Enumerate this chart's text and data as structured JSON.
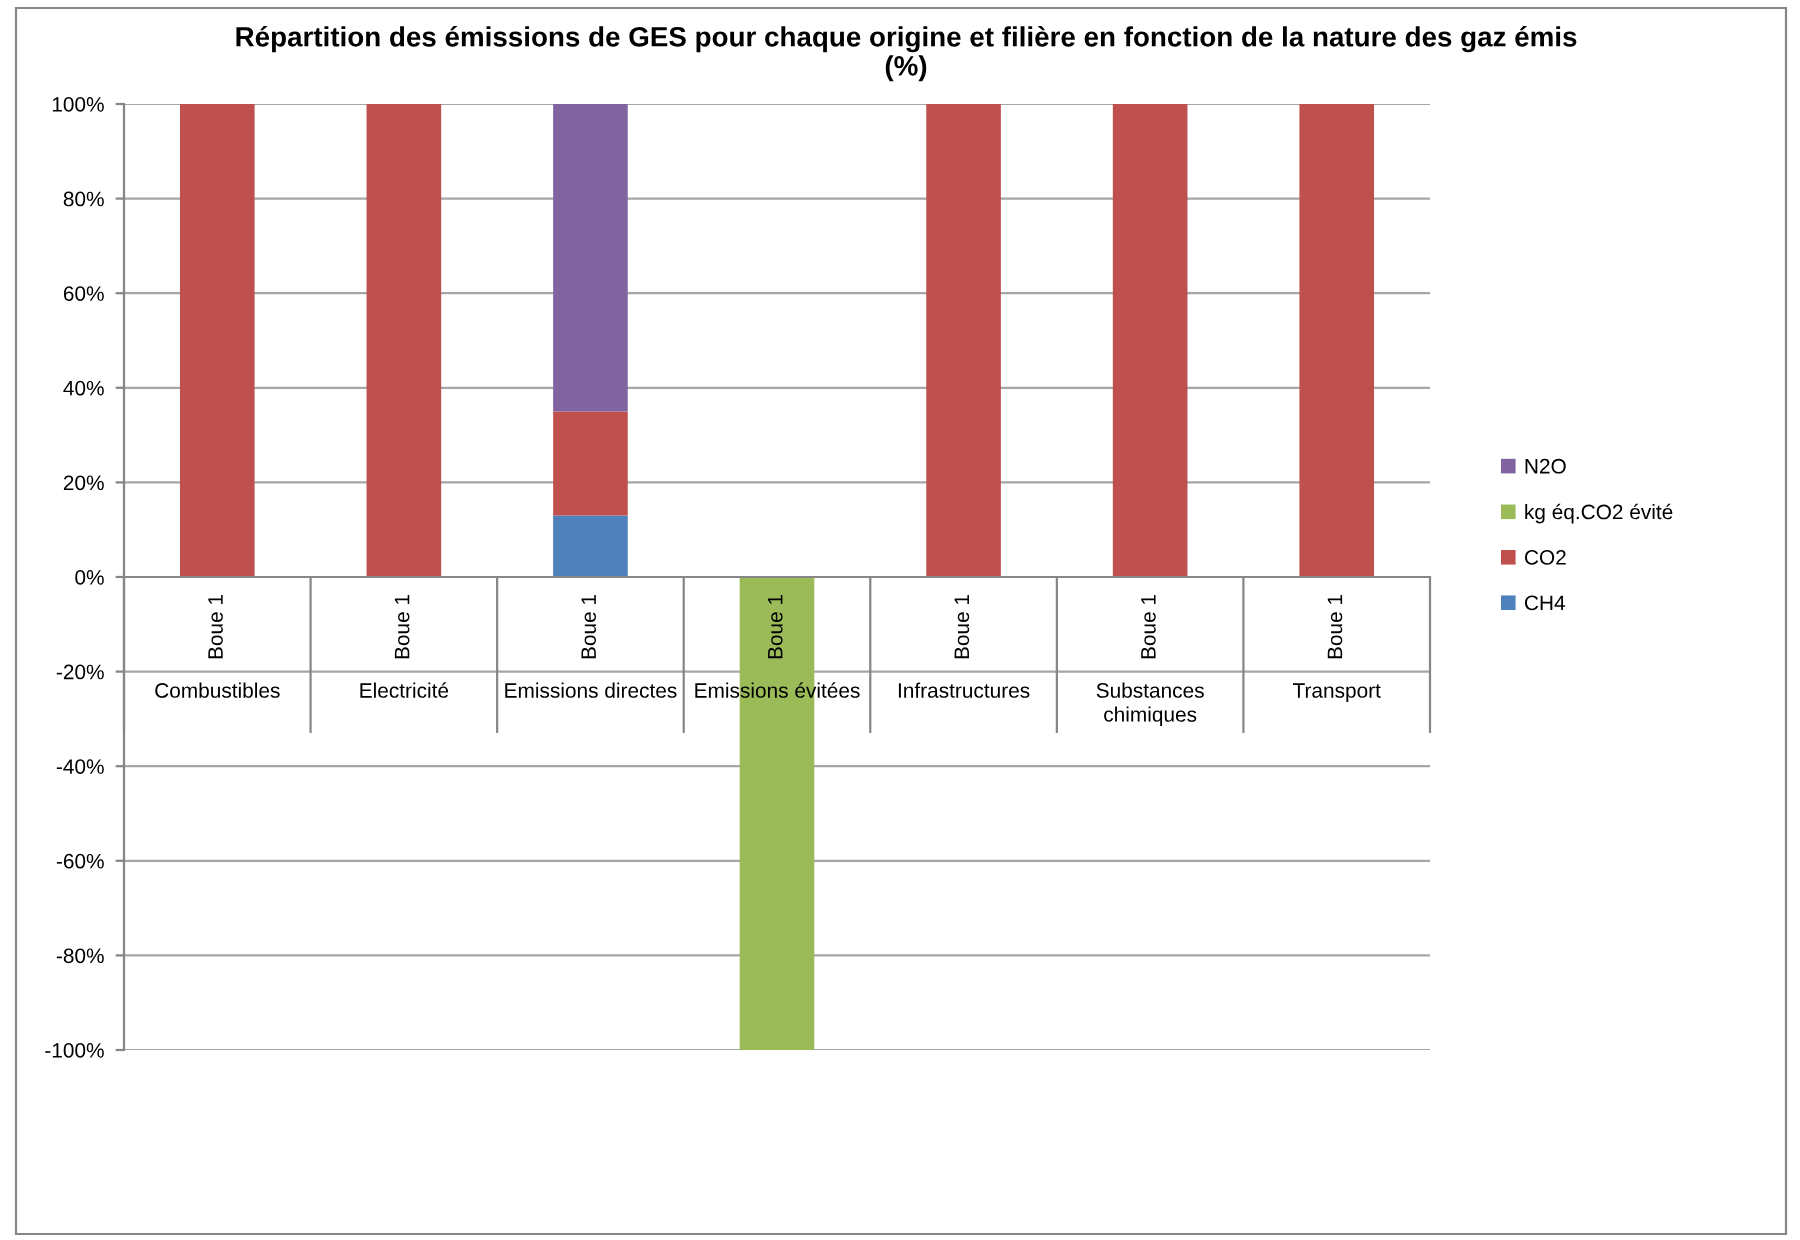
{
  "chart_data": {
    "type": "bar",
    "stacked": true,
    "title": "Répartition des émissions de GES pour chaque origine et filière en fonction de la nature des gaz émis\n(%)",
    "categories": [
      "Combustibles",
      "Electricité",
      "Emissions directes",
      "Emissions évitées",
      "Infrastructures",
      "Substances chimiques",
      "Transport"
    ],
    "annotations": [
      "Boue 1",
      "Boue 1",
      "Boue 1",
      "Boue 1",
      "Boue 1",
      "Boue 1",
      "Boue 1"
    ],
    "series": [
      {
        "name": "CH4",
        "color": "#4f81bd",
        "values": [
          null,
          null,
          13,
          null,
          null,
          null,
          null
        ]
      },
      {
        "name": "CO2",
        "color": "#c0504d",
        "values": [
          100,
          100,
          22,
          null,
          100,
          100,
          100
        ]
      },
      {
        "name": "kg éq.CO2 évité",
        "color": "#9bbb59",
        "values": [
          null,
          null,
          null,
          -100,
          null,
          null,
          null
        ]
      },
      {
        "name": "N2O",
        "color": "#8064a2",
        "values": [
          null,
          null,
          65,
          null,
          null,
          null,
          null
        ]
      }
    ],
    "ylim": [
      -100,
      100
    ],
    "yticks": [
      {
        "value": -100,
        "label": "-100%"
      },
      {
        "value": -80,
        "label": "-80%"
      },
      {
        "value": -60,
        "label": "-60%"
      },
      {
        "value": -40,
        "label": "-40%"
      },
      {
        "value": -20,
        "label": "-20%"
      },
      {
        "value": 0,
        "label": "0%"
      },
      {
        "value": 20,
        "label": "20%"
      },
      {
        "value": 40,
        "label": "40%"
      },
      {
        "value": 60,
        "label": "60%"
      },
      {
        "value": 80,
        "label": "80%"
      },
      {
        "value": 100,
        "label": "100%"
      }
    ],
    "grid": "y",
    "legend": "right"
  }
}
